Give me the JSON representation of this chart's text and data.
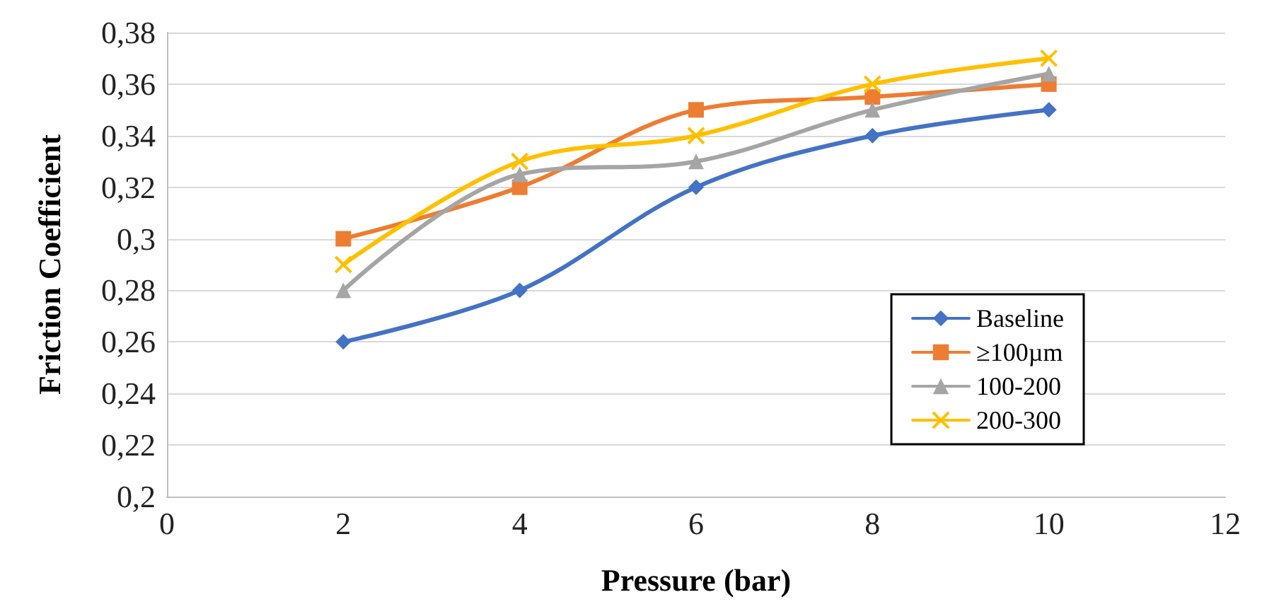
{
  "chart_data": {
    "type": "line",
    "xlabel": "Pressure (bar)",
    "ylabel": "Friction Coefficient",
    "x": [
      2,
      4,
      6,
      8,
      10
    ],
    "series": [
      {
        "name": "Baseline",
        "color": "#4472c4",
        "marker": "diamond",
        "values": [
          0.26,
          0.28,
          0.32,
          0.34,
          0.35
        ]
      },
      {
        "name": "≥100µm",
        "color": "#ed7d31",
        "marker": "square",
        "values": [
          0.3,
          0.32,
          0.35,
          0.355,
          0.36
        ]
      },
      {
        "name": "100-200",
        "color": "#a5a5a5",
        "marker": "triangle",
        "values": [
          0.28,
          0.325,
          0.33,
          0.35,
          0.364
        ]
      },
      {
        "name": "200-300",
        "color": "#ffc000",
        "marker": "cross",
        "values": [
          0.29,
          0.33,
          0.34,
          0.36,
          0.37
        ]
      }
    ],
    "xlim": [
      0,
      12
    ],
    "xticks": [
      0,
      2,
      4,
      6,
      8,
      10,
      12
    ],
    "ylim": [
      0.2,
      0.38
    ],
    "yticks": [
      {
        "value": 0.2,
        "label": "0,2"
      },
      {
        "value": 0.22,
        "label": "0,22"
      },
      {
        "value": 0.24,
        "label": "0,24"
      },
      {
        "value": 0.26,
        "label": "0,26"
      },
      {
        "value": 0.28,
        "label": "0,28"
      },
      {
        "value": 0.3,
        "label": "0,3"
      },
      {
        "value": 0.32,
        "label": "0,32"
      },
      {
        "value": 0.34,
        "label": "0,34"
      },
      {
        "value": 0.36,
        "label": "0,36"
      },
      {
        "value": 0.38,
        "label": "0,38"
      }
    ],
    "grid": "y",
    "legend": "right",
    "line_style": "solid"
  }
}
